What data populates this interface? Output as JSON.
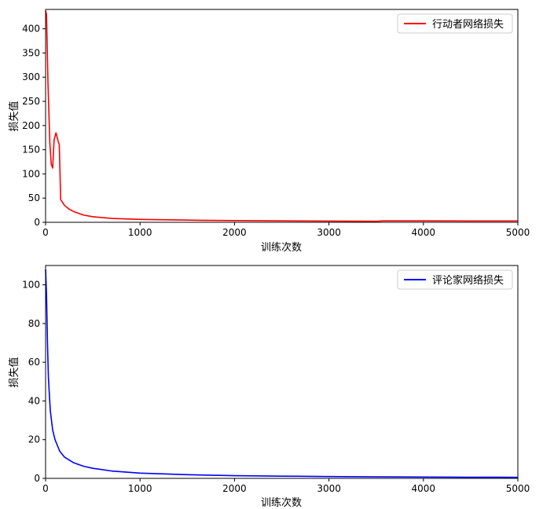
{
  "chart_data": [
    {
      "type": "line",
      "xlabel": "训练次数",
      "ylabel": "损失值",
      "xlim": [
        0,
        5000
      ],
      "ylim": [
        0,
        440
      ],
      "xticks": [
        0,
        1000,
        2000,
        3000,
        4000,
        5000
      ],
      "yticks": [
        0,
        50,
        100,
        150,
        200,
        250,
        300,
        350,
        400
      ],
      "legend_position": "top-right",
      "grid": false,
      "series": [
        {
          "name": "行动者网络损失",
          "color": "#ff0000",
          "x": [
            0,
            10,
            25,
            45,
            60,
            75,
            90,
            110,
            130,
            145,
            160,
            200,
            250,
            300,
            400,
            500,
            700,
            1000,
            1500,
            2000,
            2500,
            3000,
            3500,
            3580,
            4000,
            4500,
            5000
          ],
          "y": [
            437,
            430,
            290,
            165,
            120,
            112,
            170,
            185,
            170,
            160,
            47,
            35,
            27,
            22,
            15,
            11.5,
            8,
            6,
            4.5,
            3.5,
            3,
            2.5,
            2.2,
            3,
            2.9,
            2.8,
            2.7
          ]
        }
      ]
    },
    {
      "type": "line",
      "xlabel": "训练次数",
      "ylabel": "损失值",
      "xlim": [
        0,
        5000
      ],
      "ylim": [
        0,
        110
      ],
      "xticks": [
        0,
        1000,
        2000,
        3000,
        4000,
        5000
      ],
      "yticks": [
        0,
        20,
        40,
        60,
        80,
        100
      ],
      "legend_position": "top-right",
      "grid": false,
      "series": [
        {
          "name": "评论家网络损失",
          "color": "#0000ff",
          "x": [
            0,
            10,
            20,
            30,
            50,
            75,
            100,
            150,
            200,
            300,
            400,
            500,
            700,
            1000,
            1500,
            2000,
            2500,
            3000,
            3500,
            4000,
            4500,
            5000
          ],
          "y": [
            108,
            95,
            70,
            52,
            35,
            25,
            20,
            14,
            11,
            8,
            6.3,
            5.2,
            3.8,
            2.7,
            1.9,
            1.4,
            1.15,
            0.95,
            0.8,
            0.7,
            0.6,
            0.55
          ]
        }
      ]
    }
  ]
}
